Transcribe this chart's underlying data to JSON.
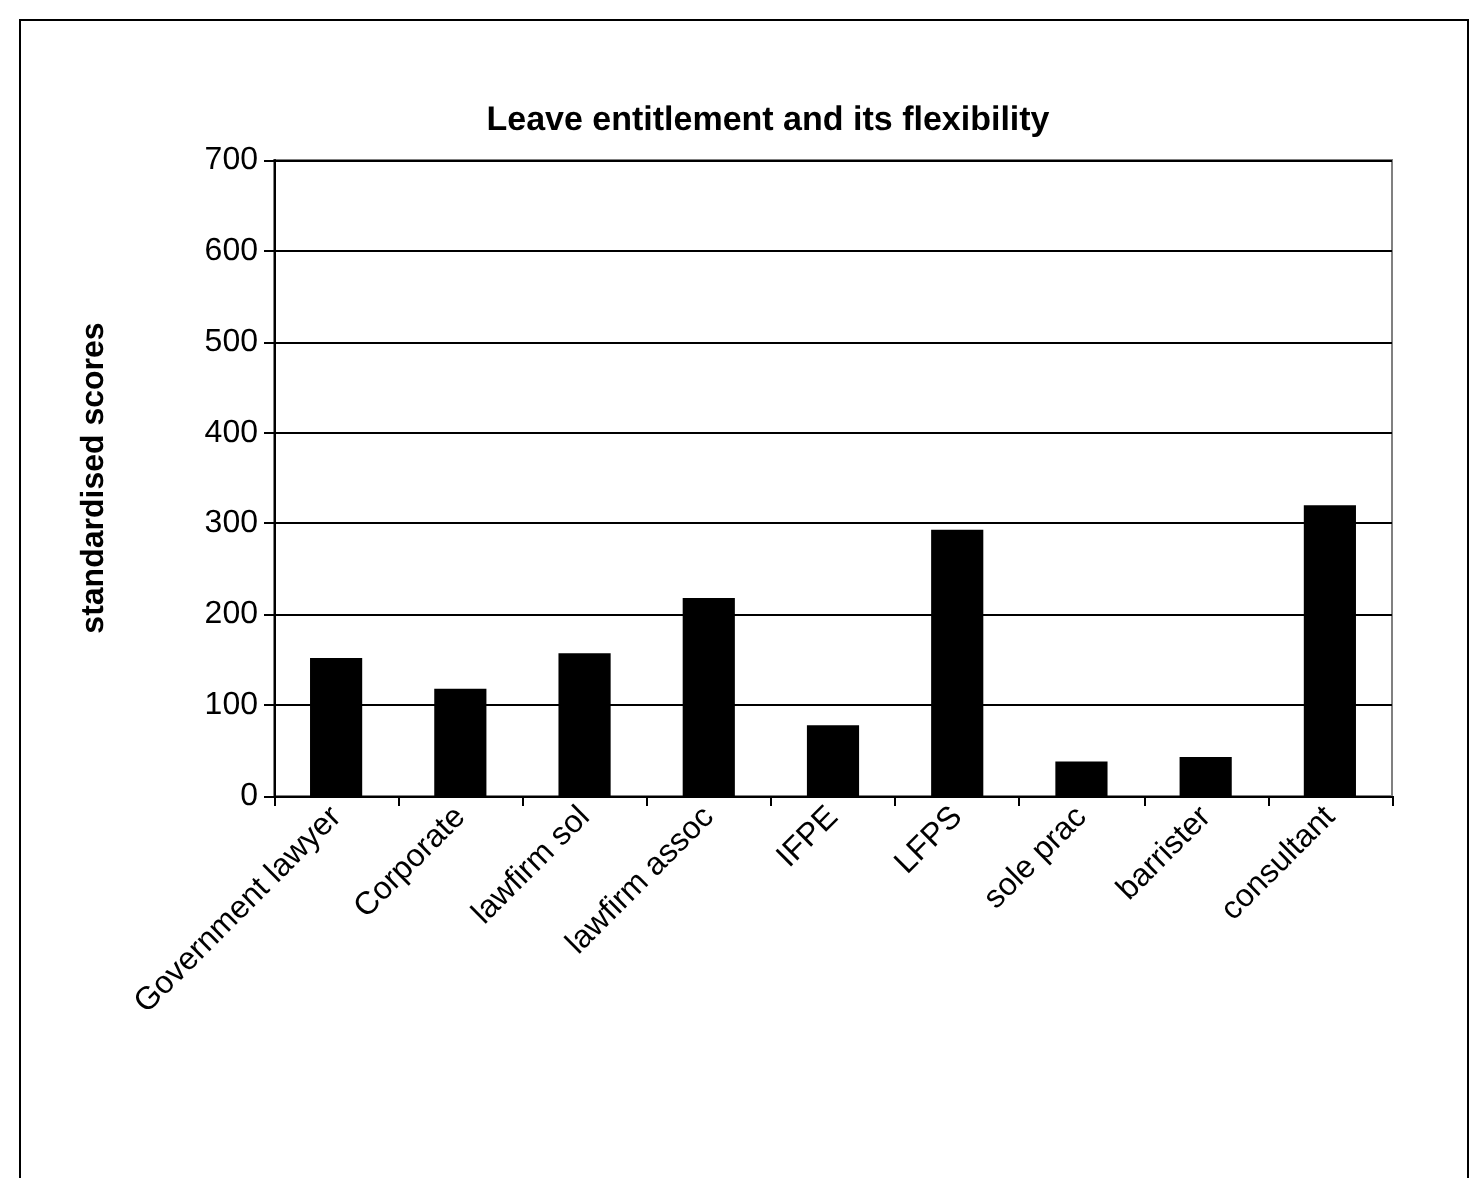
{
  "chart_data": {
    "type": "bar",
    "title": "Leave entitlement and its flexibility",
    "ylabel": "standardised scores",
    "categories": [
      "Government lawyer",
      "Corporate",
      "lawfirm sol",
      "lawfirm assoc",
      "IFPE",
      "LFPS",
      "sole prac",
      "barrister",
      "consultant"
    ],
    "values": [
      152,
      118,
      157,
      218,
      78,
      293,
      38,
      43,
      320
    ],
    "color": "#000000",
    "ylim": [
      0,
      700
    ],
    "yticks": [
      0,
      100,
      200,
      300,
      400,
      500,
      600,
      700
    ],
    "grid": "y"
  }
}
